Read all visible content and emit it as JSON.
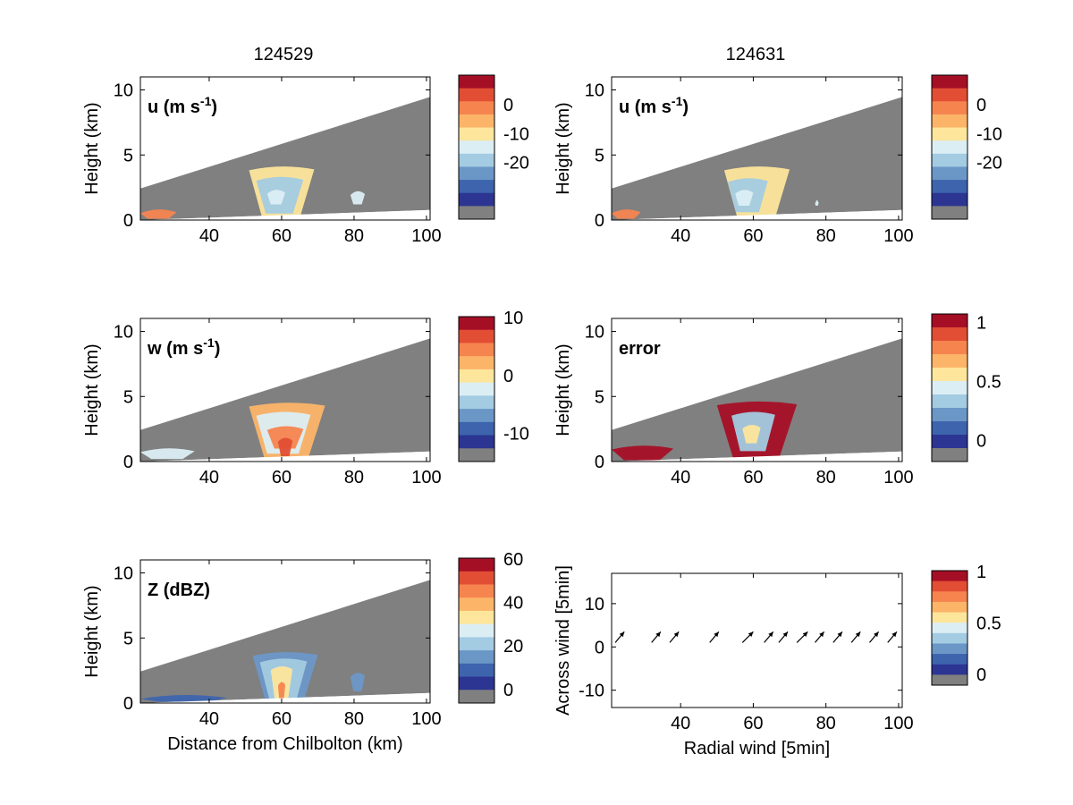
{
  "colors": {
    "scale": [
      "#808080",
      "#2c3592",
      "#3d64ad",
      "#6b97c7",
      "#a3cbe2",
      "#dbeef4",
      "#fde69b",
      "#fcb469",
      "#f6844f",
      "#e24e34",
      "#a50f26"
    ],
    "background_gray": "#808080",
    "arrow": "#000000"
  },
  "chart_data": [
    {
      "type": "heatmap",
      "column_title": "124529",
      "label": "u (m s",
      "label_sup": "-1",
      "label_end": ")",
      "ylabel": "Height (km)",
      "xlabel": "",
      "xlim": [
        21,
        101
      ],
      "ylim": [
        0,
        11
      ],
      "x_ticks": [
        "40",
        "60",
        "80",
        "100"
      ],
      "y_ticks": [
        "0",
        "5",
        "10"
      ],
      "colorbar": {
        "ticks": [
          "0",
          "-10",
          "-20"
        ],
        "tick_positions": [
          0.2,
          0.4,
          0.6
        ]
      },
      "echoes": [
        {
          "x0": 51,
          "x1": 69,
          "ytop": 4.1,
          "ybot": 0.2,
          "level": 6
        },
        {
          "x0": 53,
          "x1": 66,
          "ytop": 3.3,
          "ybot": 0.5,
          "level": 4
        },
        {
          "x0": 56,
          "x1": 61,
          "ytop": 2.3,
          "ybot": 1.2,
          "level": 5
        },
        {
          "x0": 79,
          "x1": 83,
          "ytop": 2.2,
          "ybot": 1.2,
          "level": 5
        },
        {
          "x0": 21,
          "x1": 31,
          "ytop": 0.8,
          "ybot": 0.1,
          "level": 8
        }
      ]
    },
    {
      "type": "heatmap",
      "column_title": "124631",
      "label": "u (m s",
      "label_sup": "-1",
      "label_end": ")",
      "ylabel": "Height (km)",
      "xlabel": "",
      "xlim": [
        21,
        101
      ],
      "ylim": [
        0,
        11
      ],
      "x_ticks": [
        "40",
        "60",
        "80",
        "100"
      ],
      "y_ticks": [
        "0",
        "5",
        "10"
      ],
      "colorbar": {
        "ticks": [
          "0",
          "-10",
          "-20"
        ],
        "tick_positions": [
          0.2,
          0.4,
          0.6
        ]
      },
      "echoes": [
        {
          "x0": 52,
          "x1": 70,
          "ytop": 4.1,
          "ybot": 0.2,
          "level": 6
        },
        {
          "x0": 53,
          "x1": 64,
          "ytop": 3.2,
          "ybot": 0.6,
          "level": 4
        },
        {
          "x0": 55,
          "x1": 60,
          "ytop": 2.3,
          "ybot": 1.1,
          "level": 5
        },
        {
          "x0": 77,
          "x1": 78,
          "ytop": 1.5,
          "ybot": 1.1,
          "level": 5
        },
        {
          "x0": 21,
          "x1": 29,
          "ytop": 0.8,
          "ybot": 0.1,
          "level": 8
        }
      ]
    },
    {
      "type": "heatmap",
      "label": "w (m s",
      "label_sup": "-1",
      "label_end": ")",
      "ylabel": "Height (km)",
      "xlabel": "",
      "xlim": [
        21,
        101
      ],
      "ylim": [
        0,
        11
      ],
      "x_ticks": [
        "40",
        "60",
        "80",
        "100"
      ],
      "y_ticks": [
        "0",
        "5",
        "10"
      ],
      "colorbar": {
        "ticks": [
          "10",
          "0",
          "-10"
        ],
        "tick_positions": [
          0.0,
          0.4,
          0.8
        ]
      },
      "echoes": [
        {
          "x0": 51,
          "x1": 72,
          "ytop": 4.5,
          "ybot": 0.3,
          "level": 7
        },
        {
          "x0": 53,
          "x1": 68,
          "ytop": 3.8,
          "ybot": 0.6,
          "level": 5
        },
        {
          "x0": 56,
          "x1": 66,
          "ytop": 2.7,
          "ybot": 1.0,
          "level": 8
        },
        {
          "x0": 59,
          "x1": 63,
          "ytop": 1.8,
          "ybot": 0.4,
          "level": 9
        },
        {
          "x0": 21,
          "x1": 36,
          "ytop": 1.0,
          "ybot": 0.2,
          "level": 5
        }
      ]
    },
    {
      "type": "heatmap",
      "label": "error",
      "label_sup": "",
      "label_end": "",
      "ylabel": "Height (km)",
      "xlabel": "",
      "xlim": [
        21,
        101
      ],
      "ylim": [
        0,
        11
      ],
      "x_ticks": [
        "40",
        "60",
        "80",
        "100"
      ],
      "y_ticks": [
        "0",
        "5",
        "10"
      ],
      "colorbar": {
        "ticks": [
          "1",
          "0.5",
          "0"
        ],
        "tick_positions": [
          0.05,
          0.45,
          0.85
        ]
      },
      "echoes": [
        {
          "x0": 50,
          "x1": 72,
          "ytop": 4.6,
          "ybot": 0.3,
          "level": 10
        },
        {
          "x0": 54,
          "x1": 66,
          "ytop": 3.8,
          "ybot": 0.8,
          "level": 4
        },
        {
          "x0": 57,
          "x1": 62,
          "ytop": 2.8,
          "ybot": 1.4,
          "level": 6
        },
        {
          "x0": 21,
          "x1": 38,
          "ytop": 1.2,
          "ybot": 0.1,
          "level": 10
        }
      ]
    },
    {
      "type": "heatmap",
      "label": "Z (dBZ)",
      "label_sup": "",
      "label_end": "",
      "ylabel": "Height (km)",
      "xlabel": "Distance from Chilbolton (km)",
      "xlim": [
        21,
        101
      ],
      "ylim": [
        0,
        11
      ],
      "x_ticks": [
        "40",
        "60",
        "80",
        "100"
      ],
      "y_ticks": [
        "0",
        "5",
        "10"
      ],
      "colorbar": {
        "ticks": [
          "60",
          "40",
          "20",
          "0"
        ],
        "tick_positions": [
          0.0,
          0.3,
          0.6,
          0.9
        ]
      },
      "echoes": [
        {
          "x0": 52,
          "x1": 70,
          "ytop": 3.9,
          "ybot": 0.1,
          "level": 3
        },
        {
          "x0": 54,
          "x1": 67,
          "ytop": 3.4,
          "ybot": 0.3,
          "level": 4
        },
        {
          "x0": 57,
          "x1": 63,
          "ytop": 2.8,
          "ybot": 0.1,
          "level": 6
        },
        {
          "x0": 59,
          "x1": 61,
          "ytop": 1.6,
          "ybot": 0.1,
          "level": 8
        },
        {
          "x0": 79,
          "x1": 83,
          "ytop": 2.3,
          "ybot": 0.9,
          "level": 3
        },
        {
          "x0": 21,
          "x1": 45,
          "ytop": 0.6,
          "ybot": 0.1,
          "level": 2
        }
      ]
    },
    {
      "type": "scatter",
      "xlabel": "Radial wind [5min]",
      "ylabel": "Across wind [5min]",
      "xlim": [
        21,
        101
      ],
      "ylim": [
        -14,
        17
      ],
      "x_ticks": [
        "40",
        "60",
        "80",
        "100"
      ],
      "y_ticks": [
        "10",
        "0",
        "-10"
      ],
      "colorbar": {
        "ticks": [
          "1",
          "0.5",
          "0"
        ],
        "tick_positions": [
          0.0,
          0.45,
          0.9
        ]
      },
      "arrows": [
        {
          "x": 22,
          "y": 1,
          "dx": 2.5,
          "dy": 2.5
        },
        {
          "x": 32,
          "y": 1,
          "dx": 2.5,
          "dy": 2.5
        },
        {
          "x": 37,
          "y": 1,
          "dx": 2.5,
          "dy": 2.5
        },
        {
          "x": 48,
          "y": 1,
          "dx": 2.5,
          "dy": 2.5
        },
        {
          "x": 57,
          "y": 1,
          "dx": 3.0,
          "dy": 2.5
        },
        {
          "x": 63,
          "y": 1,
          "dx": 2.5,
          "dy": 2.5
        },
        {
          "x": 67,
          "y": 1,
          "dx": 2.5,
          "dy": 2.5
        },
        {
          "x": 72,
          "y": 1,
          "dx": 3.0,
          "dy": 2.5
        },
        {
          "x": 77,
          "y": 1,
          "dx": 2.5,
          "dy": 2.5
        },
        {
          "x": 82,
          "y": 1,
          "dx": 2.5,
          "dy": 2.5
        },
        {
          "x": 87,
          "y": 1,
          "dx": 2.5,
          "dy": 2.5
        },
        {
          "x": 92,
          "y": 1,
          "dx": 2.5,
          "dy": 2.5
        },
        {
          "x": 97,
          "y": 1,
          "dx": 2.5,
          "dy": 2.5
        }
      ]
    }
  ]
}
